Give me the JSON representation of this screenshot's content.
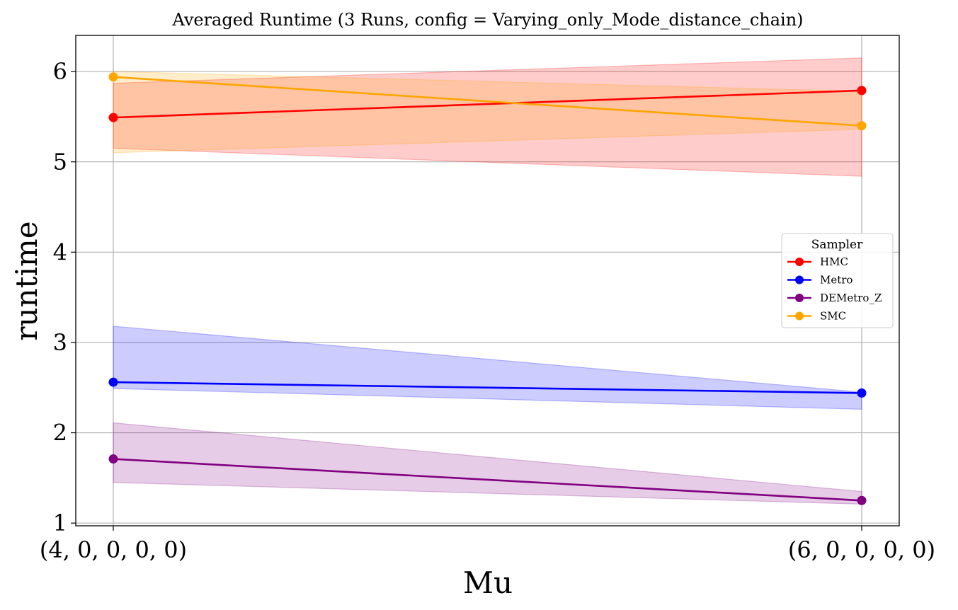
{
  "chart_data": {
    "type": "line",
    "title": "Averaged Runtime (3 Runs, config = Varying_only_Mode_distance_chain)",
    "xlabel": "Mu",
    "ylabel": "runtime",
    "categories": [
      "(4, 0, 0, 0, 0)",
      "(6, 0, 0, 0, 0)"
    ],
    "yticks": [
      "1",
      "2",
      "3",
      "4",
      "5",
      "6"
    ],
    "ylim": [
      0.97,
      6.4
    ],
    "grid": true,
    "legend": {
      "title": "Sampler",
      "placement": "center-right"
    },
    "series": [
      {
        "name": "HMC",
        "color": "#ff0000",
        "values": [
          5.49,
          5.79
        ],
        "lower": [
          5.15,
          4.84
        ],
        "upper": [
          5.87,
          6.15
        ]
      },
      {
        "name": "Metro",
        "color": "#0000ff",
        "values": [
          2.56,
          2.44
        ],
        "lower": [
          2.49,
          2.26
        ],
        "upper": [
          3.18,
          2.45
        ]
      },
      {
        "name": "DEMetro_Z",
        "color": "#800080",
        "values": [
          1.71,
          1.25
        ],
        "lower": [
          1.45,
          1.21
        ],
        "upper": [
          2.11,
          1.35
        ]
      },
      {
        "name": "SMC",
        "color": "#ffa500",
        "values": [
          5.94,
          5.4
        ],
        "lower": [
          5.1,
          5.36
        ],
        "upper": [
          6.0,
          5.78
        ]
      }
    ]
  }
}
